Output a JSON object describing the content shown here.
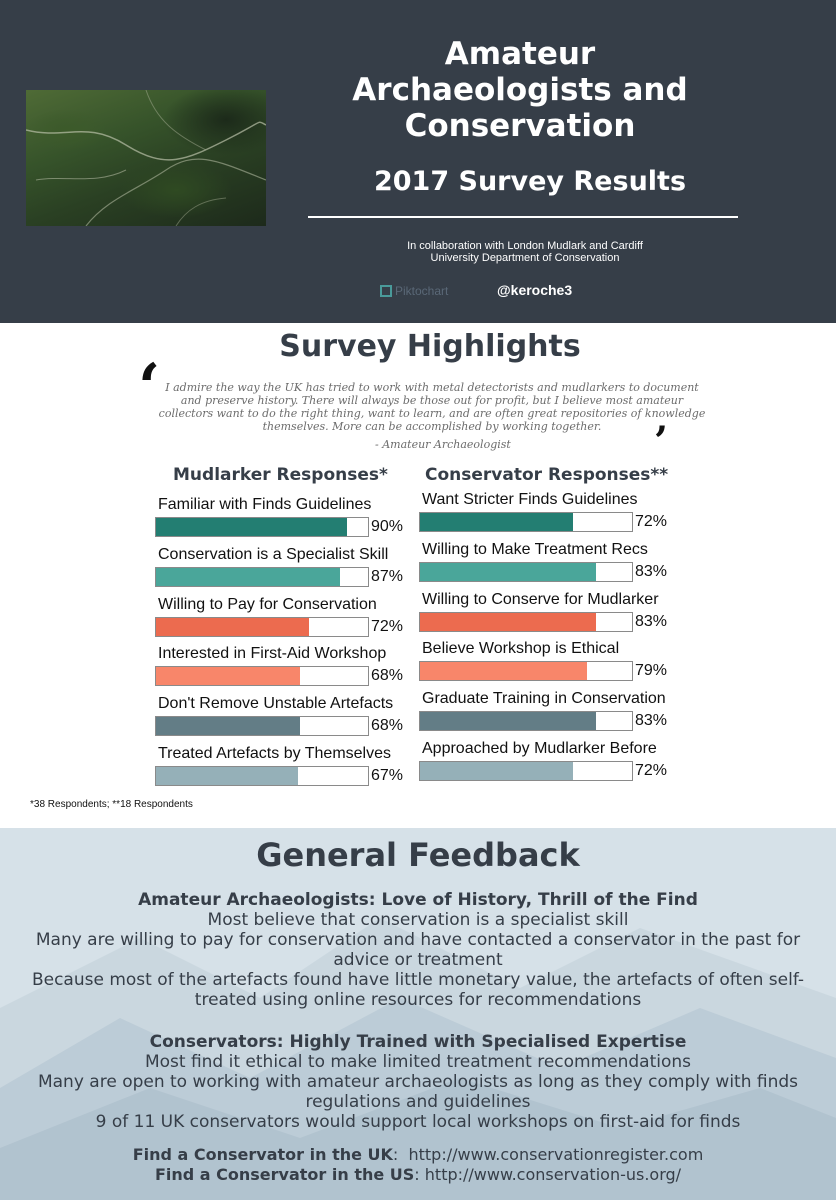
{
  "header": {
    "title": "Amateur Archaeologists and Conservation",
    "subtitle": "2017 Survey Results",
    "collab_line1": "In collaboration with London Mudlark and Cardiff",
    "collab_line2": "University Department of Conservation",
    "brand": "Piktochart",
    "handle": "@keroche3"
  },
  "highlights": {
    "title": "Survey Highlights",
    "quote": "I admire the way the UK has tried to work with metal detectorists and mudlarkers to document and preserve history. There will always be those out for profit, but I believe most amateur collectors want to do the right thing, want to learn, and are often great repositories of knowledge themselves. More can be accomplished by working together.",
    "quote_attribution": "- Amateur Archaeologist",
    "mudlarker_heading": "Mudlarker Responses*",
    "conservator_heading": "Conservator Responses**",
    "footnote": "*38 Respondents; **18 Respondents"
  },
  "chart_data": [
    {
      "type": "bar",
      "title": "Mudlarker Responses*",
      "categories": [
        "Familiar with Finds Guidelines",
        "Conservation is a Specialist Skill",
        "Willing to Pay for Conservation",
        "Interested in First-Aid Workshop",
        "Don't Remove Unstable Artefacts",
        "Treated Artefacts by Themselves"
      ],
      "values": [
        90,
        87,
        72,
        68,
        68,
        67
      ],
      "labels": [
        "90%",
        "87%",
        "72%",
        "68%",
        "68%",
        "67%"
      ],
      "colors": [
        "#237e72",
        "#4aa69a",
        "#ec6b4f",
        "#f8866a",
        "#637d86",
        "#95b0b8"
      ],
      "ylim": [
        0,
        100
      ]
    },
    {
      "type": "bar",
      "title": "Conservator Responses**",
      "categories": [
        "Want Stricter Finds Guidelines",
        "Willing to Make Treatment Recs",
        "Willing to Conserve for Mudlarker",
        "Believe Workshop is Ethical",
        "Graduate Training in Conservation",
        "Approached by Mudlarker Before"
      ],
      "values": [
        72,
        83,
        83,
        79,
        83,
        72
      ],
      "labels": [
        "72%",
        "83%",
        "83%",
        "79%",
        "83%",
        "72%"
      ],
      "colors": [
        "#237e72",
        "#4aa69a",
        "#ec6b4f",
        "#f8866a",
        "#637d86",
        "#95b0b8"
      ],
      "ylim": [
        0,
        100
      ]
    }
  ],
  "feedback": {
    "title": "General Feedback",
    "amateur": {
      "heading": "Amateur Archaeologists: Love of History, Thrill of the Find",
      "lines": [
        "Most believe that conservation is a specialist skill",
        "Many are willing to pay for conservation and have contacted a conservator in the past for advice or treatment",
        "Because most of the artefacts found have little monetary value, the artefacts of often self-treated using online resources for recommendations"
      ]
    },
    "conservators": {
      "heading": "Conservators: Highly Trained with Specialised Expertise",
      "lines": [
        "Most find it ethical to make limited treatment recommendations",
        "Many are open to working with amateur archaeologists as long as they comply with finds regulations and guidelines",
        "9 of 11 UK conservators would support local workshops on first-aid for finds"
      ]
    },
    "links": [
      {
        "label": "Find a Conservator in the UK",
        "url": "http://www.conservationregister.com"
      },
      {
        "label": "Find a Conservator in the US",
        "url": "http://www.conservation-us.org/"
      }
    ]
  }
}
